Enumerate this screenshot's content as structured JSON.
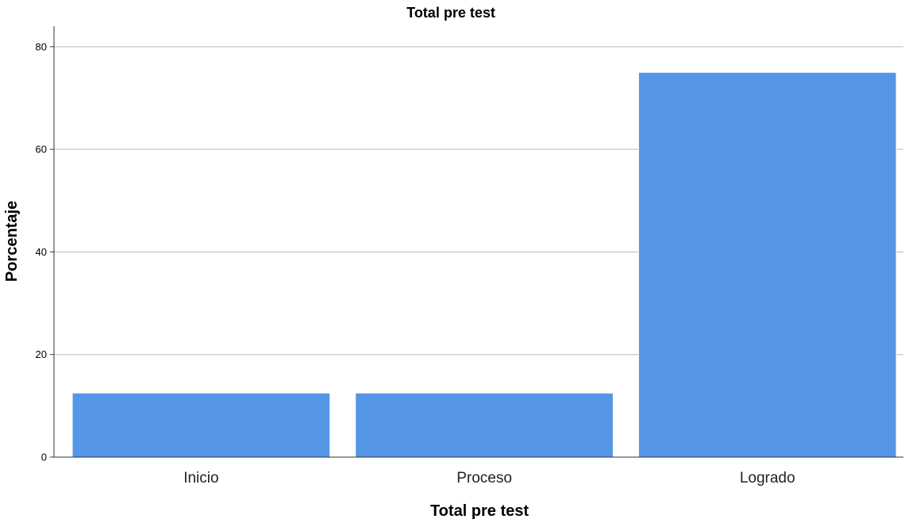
{
  "chart_data": {
    "type": "bar",
    "title": "Total pre test",
    "xlabel": "Total pre test",
    "ylabel": "Porcentaje",
    "categories": [
      "Inicio",
      "Proceso",
      "Logrado"
    ],
    "values": [
      12.5,
      12.5,
      75.0
    ],
    "ylim": [
      0,
      84
    ],
    "yticks": [
      0,
      20,
      40,
      60,
      80
    ],
    "grid": true,
    "legend": "none",
    "bar_color": "#5596e6"
  }
}
